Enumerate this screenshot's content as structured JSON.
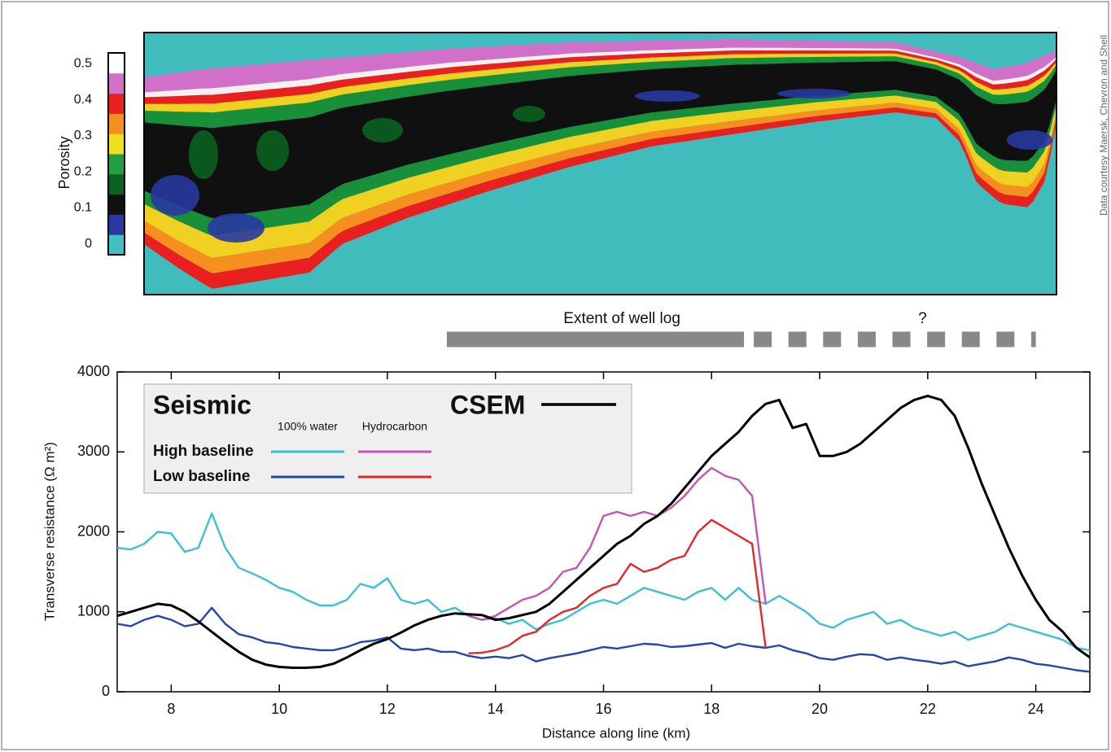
{
  "credit": "Data courtesy Maersk, Chevron and Shell",
  "chart_data": [
    {
      "type": "section",
      "colorbar": {
        "label": "Porosity",
        "lim": [
          -0.03,
          0.53
        ],
        "ticks": [
          0,
          0.1,
          0.2,
          0.3,
          0.4,
          0.5
        ],
        "colors": [
          "#40c0c0",
          "#2838a0",
          "#101010",
          "#0a6020",
          "#20a040",
          "#f0e020",
          "#f59020",
          "#e82020",
          "#d070c8",
          "#ffffff"
        ]
      }
    },
    {
      "type": "line",
      "xlabel": "Distance along line (km)",
      "ylabel": "Transverse resistance  (Ω m²)",
      "xlim": [
        7,
        25
      ],
      "ylim": [
        0,
        4000
      ],
      "xticks": [
        8,
        10,
        12,
        14,
        16,
        18,
        20,
        22,
        24
      ],
      "yticks": [
        0,
        1000,
        2000,
        3000,
        4000
      ],
      "annotations": [
        {
          "text": "Extent of well log",
          "range": [
            13.1,
            18.6
          ],
          "style": "solid"
        },
        {
          "text": "?",
          "range": [
            18.6,
            24.0
          ],
          "style": "dashed"
        }
      ],
      "legend": {
        "title": "Seismic",
        "columns": [
          "100% water",
          "Hydrocarbon"
        ],
        "rows": [
          "High baseline",
          "Low baseline"
        ]
      },
      "x": [
        7,
        7.25,
        7.5,
        7.75,
        8,
        8.25,
        8.5,
        8.75,
        9,
        9.25,
        9.5,
        9.75,
        10,
        10.25,
        10.5,
        10.75,
        11,
        11.25,
        11.5,
        11.75,
        12,
        12.25,
        12.5,
        12.75,
        13,
        13.25,
        13.5,
        13.75,
        14,
        14.25,
        14.5,
        14.75,
        15,
        15.25,
        15.5,
        15.75,
        16,
        16.25,
        16.5,
        16.75,
        17,
        17.25,
        17.5,
        17.75,
        18,
        18.25,
        18.5,
        18.75,
        19,
        19.25,
        19.5,
        19.75,
        20,
        20.25,
        20.5,
        20.75,
        21,
        21.25,
        21.5,
        21.75,
        22,
        22.25,
        22.5,
        22.75,
        23,
        23.25,
        23.5,
        23.75,
        24,
        24.25,
        24.5,
        24.75,
        25
      ],
      "series": [
        {
          "row": 0,
          "column": 0,
          "color": "#3cc0d6",
          "values": [
            1800,
            1780,
            1850,
            2000,
            1980,
            1750,
            1800,
            2230,
            1800,
            1550,
            1480,
            1400,
            1300,
            1250,
            1150,
            1080,
            1080,
            1150,
            1350,
            1300,
            1420,
            1150,
            1100,
            1150,
            1000,
            1050,
            950,
            900,
            920,
            850,
            900,
            780,
            850,
            900,
            1000,
            1100,
            1150,
            1100,
            1200,
            1300,
            1250,
            1200,
            1150,
            1250,
            1300,
            1150,
            1300,
            1150,
            1100,
            1200,
            1100,
            1000,
            850,
            800,
            900,
            950,
            1000,
            850,
            900,
            800,
            750,
            700,
            750,
            650,
            700,
            750,
            850,
            800,
            750,
            700,
            650,
            550,
            520
          ]
        },
        {
          "row": 1,
          "column": 0,
          "color": "#2446a8",
          "values": [
            850,
            820,
            900,
            950,
            900,
            820,
            850,
            1050,
            850,
            720,
            680,
            620,
            600,
            560,
            540,
            520,
            520,
            560,
            620,
            640,
            680,
            540,
            520,
            540,
            500,
            500,
            450,
            420,
            440,
            420,
            460,
            380,
            420,
            450,
            480,
            520,
            560,
            540,
            570,
            600,
            590,
            560,
            570,
            590,
            610,
            550,
            600,
            570,
            550,
            580,
            520,
            480,
            420,
            400,
            440,
            470,
            460,
            400,
            430,
            400,
            380,
            350,
            380,
            320,
            350,
            380,
            430,
            400,
            350,
            330,
            300,
            270,
            250
          ]
        },
        {
          "row": 0,
          "column": 1,
          "color": "#c455b4",
          "values": [
            null,
            null,
            null,
            null,
            null,
            null,
            null,
            null,
            null,
            null,
            null,
            null,
            null,
            null,
            null,
            null,
            null,
            null,
            null,
            null,
            null,
            null,
            null,
            null,
            null,
            null,
            950,
            900,
            950,
            1050,
            1150,
            1200,
            1300,
            1500,
            1550,
            1800,
            2200,
            2250,
            2200,
            2250,
            2200,
            2300,
            2450,
            2650,
            2800,
            2700,
            2650,
            2450,
            1100,
            null,
            null,
            null,
            null,
            null,
            null,
            null,
            null,
            null,
            null,
            null,
            null,
            null,
            null,
            null,
            null,
            null,
            null,
            null,
            null,
            null,
            null,
            null,
            null
          ]
        },
        {
          "row": 1,
          "column": 1,
          "color": "#e8262a",
          "values": [
            null,
            null,
            null,
            null,
            null,
            null,
            null,
            null,
            null,
            null,
            null,
            null,
            null,
            null,
            null,
            null,
            null,
            null,
            null,
            null,
            null,
            null,
            null,
            null,
            null,
            null,
            480,
            490,
            520,
            580,
            700,
            750,
            900,
            1000,
            1050,
            1200,
            1300,
            1350,
            1600,
            1500,
            1550,
            1650,
            1700,
            2000,
            2150,
            2050,
            1950,
            1850,
            550,
            null,
            null,
            null,
            null,
            null,
            null,
            null,
            null,
            null,
            null,
            null,
            null,
            null,
            null,
            null,
            null,
            null,
            null,
            null,
            null,
            null,
            null,
            null,
            null
          ]
        },
        {
          "name": "CSEM",
          "color": "#000000",
          "values": [
            950,
            1000,
            1050,
            1100,
            1080,
            1000,
            880,
            750,
            620,
            500,
            400,
            340,
            310,
            300,
            300,
            310,
            350,
            430,
            520,
            600,
            660,
            740,
            830,
            900,
            950,
            980,
            970,
            960,
            900,
            920,
            960,
            1000,
            1100,
            1250,
            1400,
            1550,
            1700,
            1850,
            1950,
            2100,
            2200,
            2350,
            2550,
            2750,
            2950,
            3100,
            3250,
            3450,
            3600,
            3650,
            3300,
            3350,
            2950,
            2950,
            3000,
            3100,
            3250,
            3400,
            3550,
            3650,
            3700,
            3650,
            3450,
            3050,
            2600,
            2200,
            1800,
            1450,
            1150,
            900,
            750,
            550,
            430
          ]
        }
      ]
    }
  ]
}
